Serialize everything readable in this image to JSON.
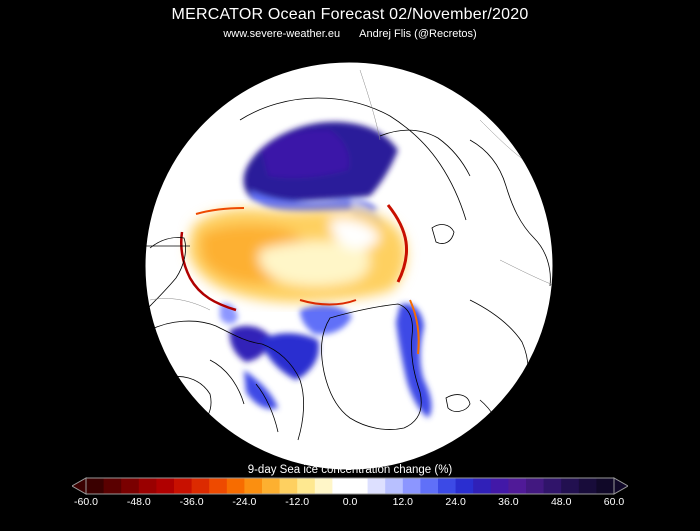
{
  "header": {
    "title": "MERCATOR Ocean Forecast  02/November/2020",
    "site": "www.severe-weather.eu",
    "author": "Andrej Flis (@Recretos)"
  },
  "colorbar": {
    "label": "9-day Sea ice concentration change (%)",
    "min": -60,
    "max": 60,
    "ticks": [
      "-60.0",
      "-48.0",
      "-36.0",
      "-24.0",
      "-12.0",
      "0.0",
      "12.0",
      "24.0",
      "36.0",
      "48.0",
      "60.0"
    ],
    "colors": [
      "#3a0000",
      "#5a0000",
      "#7a0000",
      "#9a0000",
      "#b00000",
      "#c81000",
      "#dc2a00",
      "#ee4a00",
      "#f76c00",
      "#fb8f10",
      "#fdb030",
      "#fed060",
      "#fee890",
      "#fff6c8",
      "#ffffff",
      "#ffffff",
      "#dde0ff",
      "#b8c0ff",
      "#8c96ff",
      "#6070f8",
      "#3c4ae6",
      "#2a2ed0",
      "#3020b8",
      "#4218a8",
      "#501a98",
      "#421880",
      "#30146a",
      "#221050",
      "#180c3a",
      "#100828"
    ]
  },
  "map": {
    "projection": "polar stereographic",
    "region": "Arctic",
    "colors": {
      "background": "#000000",
      "ocean": "#ffffff",
      "coastline": "#000000",
      "ice_gain": "#2a1c9a",
      "ice_loss": "#fdd35a"
    }
  }
}
